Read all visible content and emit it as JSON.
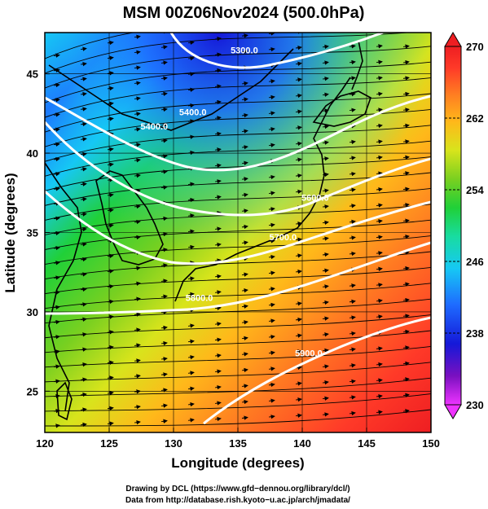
{
  "title": "MSM 00Z06Nov2024 (500.0hPa)",
  "xlabel": "Longitude (degrees)",
  "ylabel": "Latitude  (degrees)",
  "x_ticks": [
    120,
    125,
    130,
    135,
    140,
    145,
    150
  ],
  "y_ticks": [
    25,
    30,
    35,
    40,
    45
  ],
  "x_range": [
    120,
    150
  ],
  "y_range": [
    22.4,
    47.6
  ],
  "colorbar": {
    "min": 230,
    "max": 270,
    "labels": [
      270,
      262,
      254,
      246,
      238,
      230
    ],
    "gradient": [
      "#ee33ff",
      "#7a10c0",
      "#1518d8",
      "#1e6cff",
      "#16c8f4",
      "#18dca0",
      "#20d038",
      "#7ad020",
      "#d8e41c",
      "#ffb81a",
      "#ff7a22",
      "#ff3a28",
      "#ee1e22"
    ]
  },
  "contours": [
    {
      "label": "5300.0",
      "lon": 135.5,
      "lat": 46.3
    },
    {
      "label": "5400.0",
      "lon": 131.5,
      "lat": 42.4
    },
    {
      "label": "5400.0",
      "lon": 128.5,
      "lat": 41.5
    },
    {
      "label": "5600.0",
      "lon": 141.0,
      "lat": 37.0
    },
    {
      "label": "5700.0",
      "lon": 138.5,
      "lat": 34.5
    },
    {
      "label": "5800.0",
      "lon": 132.0,
      "lat": 30.7
    },
    {
      "label": "5900.0",
      "lon": 140.5,
      "lat": 27.2
    }
  ],
  "credits": {
    "line1": "Drawing by DCL (https://www.gfd−dennou.org/library/dcl/)",
    "line2": "Data from http://database.rish.kyoto−u.ac.jp/arch/jmadata/"
  }
}
